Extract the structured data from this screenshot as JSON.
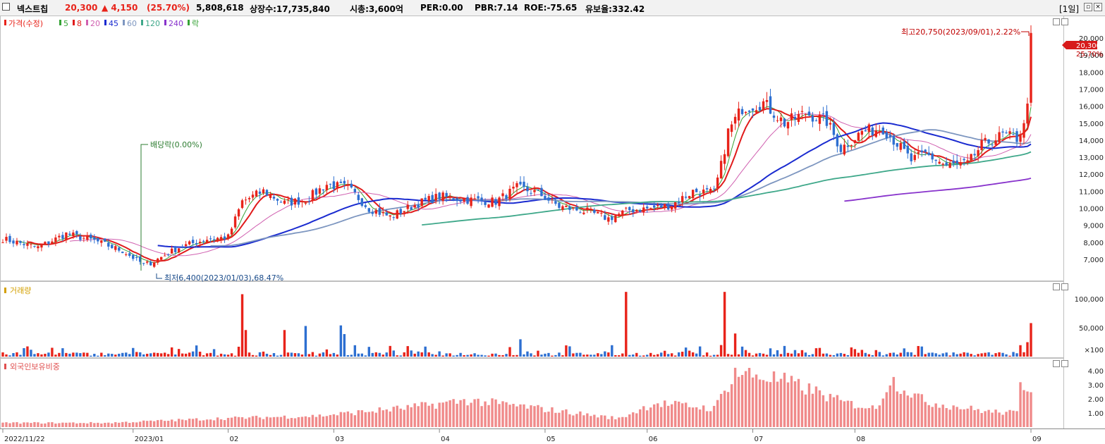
{
  "header": {
    "name": "넥스트칩",
    "price": "20,300",
    "change": "▲ 4,150",
    "change_pct": "(25.70%)",
    "volume": "5,808,618",
    "listed": "상장수:17,735,840",
    "mcap": "시총:3,600억",
    "per": "PER:0.00",
    "pbr": "PBR:7.14",
    "roe": "ROE:-75.65",
    "float": "유보율:332.42",
    "period": "[1일]"
  },
  "colors": {
    "up": "#e8231a",
    "down": "#2d6fd1",
    "ma5": "#36a336",
    "ma8": "#e01b1b",
    "ma20": "#d060b0",
    "ma45": "#1a2bd0",
    "ma60": "#7d96c0",
    "ma120": "#3fa88a",
    "ma240": "#8833cc",
    "foreign": "#f08a8a"
  },
  "price_panel": {
    "legend": [
      {
        "text": "가격(수정)",
        "color": "#e8231a"
      },
      {
        "text": "5",
        "color": "#36a336"
      },
      {
        "text": "8",
        "color": "#e01b1b"
      },
      {
        "text": "20",
        "color": "#d060b0"
      },
      {
        "text": "45",
        "color": "#1a2bd0"
      },
      {
        "text": "60",
        "color": "#7d96c0"
      },
      {
        "text": "120",
        "color": "#3fa88a"
      },
      {
        "text": "240",
        "color": "#8833cc"
      },
      {
        "text": "락",
        "color": "#36a336"
      }
    ],
    "annotation_high": "최고20,750(2023/09/01),2.22%",
    "annotation_low": "최저6,400(2023/01/03),68.47%",
    "annotation_div": "배당락(0.00%)",
    "current_price_label": "20,300",
    "current_pct_label": "25.70%"
  },
  "volume_panel": {
    "legend": "거래량"
  },
  "foreign_panel": {
    "legend": "외국인보유비중"
  },
  "chart_data": [
    {
      "type": "candlestick",
      "title": "넥스트칩",
      "x_labels": [
        "2022/11/22",
        "2023/01",
        "02",
        "03",
        "04",
        "05",
        "06",
        "07",
        "08",
        "09"
      ],
      "y_ticks": [
        "20,000",
        "19,000",
        "18,000",
        "17,000",
        "16,000",
        "15,000",
        "14,000",
        "13,000",
        "12,000",
        "11,000",
        "10,000",
        "9,000",
        "8,000",
        "7,000"
      ],
      "ylim": [
        6000,
        21000
      ],
      "anchors": [
        {
          "t": 0,
          "v": 8200
        },
        {
          "t": 10,
          "v": 7700
        },
        {
          "t": 18,
          "v": 8500
        },
        {
          "t": 26,
          "v": 8100
        },
        {
          "t": 34,
          "v": 7500
        },
        {
          "t": 40,
          "v": 6700
        },
        {
          "t": 42,
          "v": 6800
        },
        {
          "t": 50,
          "v": 7700
        },
        {
          "t": 58,
          "v": 8200
        },
        {
          "t": 64,
          "v": 8300
        },
        {
          "t": 68,
          "v": 10400
        },
        {
          "t": 74,
          "v": 11000
        },
        {
          "t": 80,
          "v": 10300
        },
        {
          "t": 86,
          "v": 10500
        },
        {
          "t": 92,
          "v": 11400
        },
        {
          "t": 98,
          "v": 11200
        },
        {
          "t": 104,
          "v": 10000
        },
        {
          "t": 110,
          "v": 9500
        },
        {
          "t": 118,
          "v": 10300
        },
        {
          "t": 124,
          "v": 10700
        },
        {
          "t": 132,
          "v": 10500
        },
        {
          "t": 140,
          "v": 10400
        },
        {
          "t": 146,
          "v": 11200
        },
        {
          "t": 152,
          "v": 10900
        },
        {
          "t": 158,
          "v": 10100
        },
        {
          "t": 166,
          "v": 9800
        },
        {
          "t": 172,
          "v": 9400
        },
        {
          "t": 178,
          "v": 9900
        },
        {
          "t": 184,
          "v": 10000
        },
        {
          "t": 190,
          "v": 10200
        },
        {
          "t": 196,
          "v": 11000
        },
        {
          "t": 202,
          "v": 10900
        },
        {
          "t": 204,
          "v": 12500
        },
        {
          "t": 206,
          "v": 14500
        },
        {
          "t": 210,
          "v": 15900
        },
        {
          "t": 216,
          "v": 16200
        },
        {
          "t": 222,
          "v": 15000
        },
        {
          "t": 228,
          "v": 15600
        },
        {
          "t": 234,
          "v": 15100
        },
        {
          "t": 238,
          "v": 13500
        },
        {
          "t": 244,
          "v": 14500
        },
        {
          "t": 250,
          "v": 14700
        },
        {
          "t": 254,
          "v": 13800
        },
        {
          "t": 258,
          "v": 12800
        },
        {
          "t": 262,
          "v": 13200
        },
        {
          "t": 268,
          "v": 12500
        },
        {
          "t": 274,
          "v": 12600
        },
        {
          "t": 278,
          "v": 13700
        },
        {
          "t": 284,
          "v": 14300
        },
        {
          "t": 288,
          "v": 14100
        },
        {
          "t": 290,
          "v": 15000
        },
        {
          "t": 291,
          "v": 16150
        },
        {
          "t": 292,
          "v": 20300
        }
      ],
      "n_bars": 293
    },
    {
      "type": "bar",
      "title": "거래량",
      "y_ticks": [
        "100,000",
        "50,000",
        "×100"
      ],
      "ylim": [
        0,
        120000
      ],
      "spikes": [
        {
          "t": 68,
          "v": 108000
        },
        {
          "t": 69,
          "v": 46000
        },
        {
          "t": 80,
          "v": 46000
        },
        {
          "t": 86,
          "v": 53000
        },
        {
          "t": 96,
          "v": 54000
        },
        {
          "t": 97,
          "v": 39000
        },
        {
          "t": 147,
          "v": 30000
        },
        {
          "t": 177,
          "v": 112000
        },
        {
          "t": 205,
          "v": 112000
        },
        {
          "t": 204,
          "v": 20000
        },
        {
          "t": 208,
          "v": 40000
        },
        {
          "t": 291,
          "v": 25000
        },
        {
          "t": 292,
          "v": 58000
        }
      ]
    },
    {
      "type": "bar",
      "title": "외국인보유비중",
      "y_ticks": [
        "4.00",
        "3.00",
        "2.00",
        "1.00"
      ],
      "ylim": [
        0,
        4.5
      ],
      "anchors": [
        {
          "t": 0,
          "v": 0.3
        },
        {
          "t": 30,
          "v": 0.3
        },
        {
          "t": 60,
          "v": 0.6
        },
        {
          "t": 90,
          "v": 0.8
        },
        {
          "t": 116,
          "v": 1.4
        },
        {
          "t": 132,
          "v": 1.9
        },
        {
          "t": 150,
          "v": 1.4
        },
        {
          "t": 175,
          "v": 0.6
        },
        {
          "t": 185,
          "v": 1.7
        },
        {
          "t": 195,
          "v": 1.5
        },
        {
          "t": 202,
          "v": 1.3
        },
        {
          "t": 208,
          "v": 3.9
        },
        {
          "t": 220,
          "v": 3.4
        },
        {
          "t": 230,
          "v": 2.6
        },
        {
          "t": 238,
          "v": 1.8
        },
        {
          "t": 248,
          "v": 1.3
        },
        {
          "t": 252,
          "v": 3.4
        },
        {
          "t": 262,
          "v": 1.8
        },
        {
          "t": 280,
          "v": 1.1
        },
        {
          "t": 288,
          "v": 1.0
        },
        {
          "t": 289,
          "v": 3.0
        },
        {
          "t": 292,
          "v": 2.9
        }
      ]
    }
  ]
}
